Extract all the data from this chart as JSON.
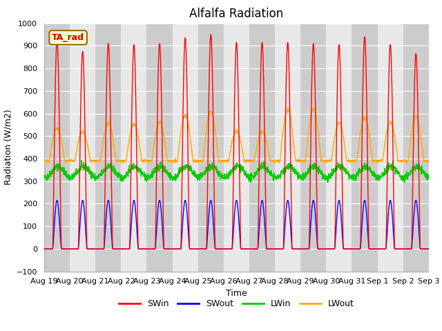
{
  "title": "Alfalfa Radiation",
  "xlabel": "Time",
  "ylabel": "Radiation (W/m2)",
  "ylim": [
    -100,
    1000
  ],
  "background_color": "#ffffff",
  "plot_bg_color": "#e8e8e8",
  "grid_color": "#ffffff",
  "alt_band_color": "#cccccc",
  "title_fontsize": 12,
  "label_fontsize": 9,
  "tick_fontsize": 8,
  "legend_label": "TA_rad",
  "series": [
    "SWin",
    "SWout",
    "LWin",
    "LWout"
  ],
  "colors": [
    "#ff0000",
    "#0000ff",
    "#00cc00",
    "#ffaa00"
  ],
  "num_days": 15,
  "SWin_peaks": [
    925,
    875,
    910,
    905,
    910,
    935,
    950,
    915,
    915,
    915,
    910,
    905,
    940,
    905,
    865
  ],
  "SWout_peak": 215,
  "LWin_base": 340,
  "LWin_amp": 25,
  "LWout_base": 390,
  "LWout_day_peaks": [
    535,
    520,
    558,
    553,
    562,
    592,
    608,
    522,
    522,
    617,
    620,
    562,
    582,
    562,
    588
  ],
  "line_width": 1.0
}
